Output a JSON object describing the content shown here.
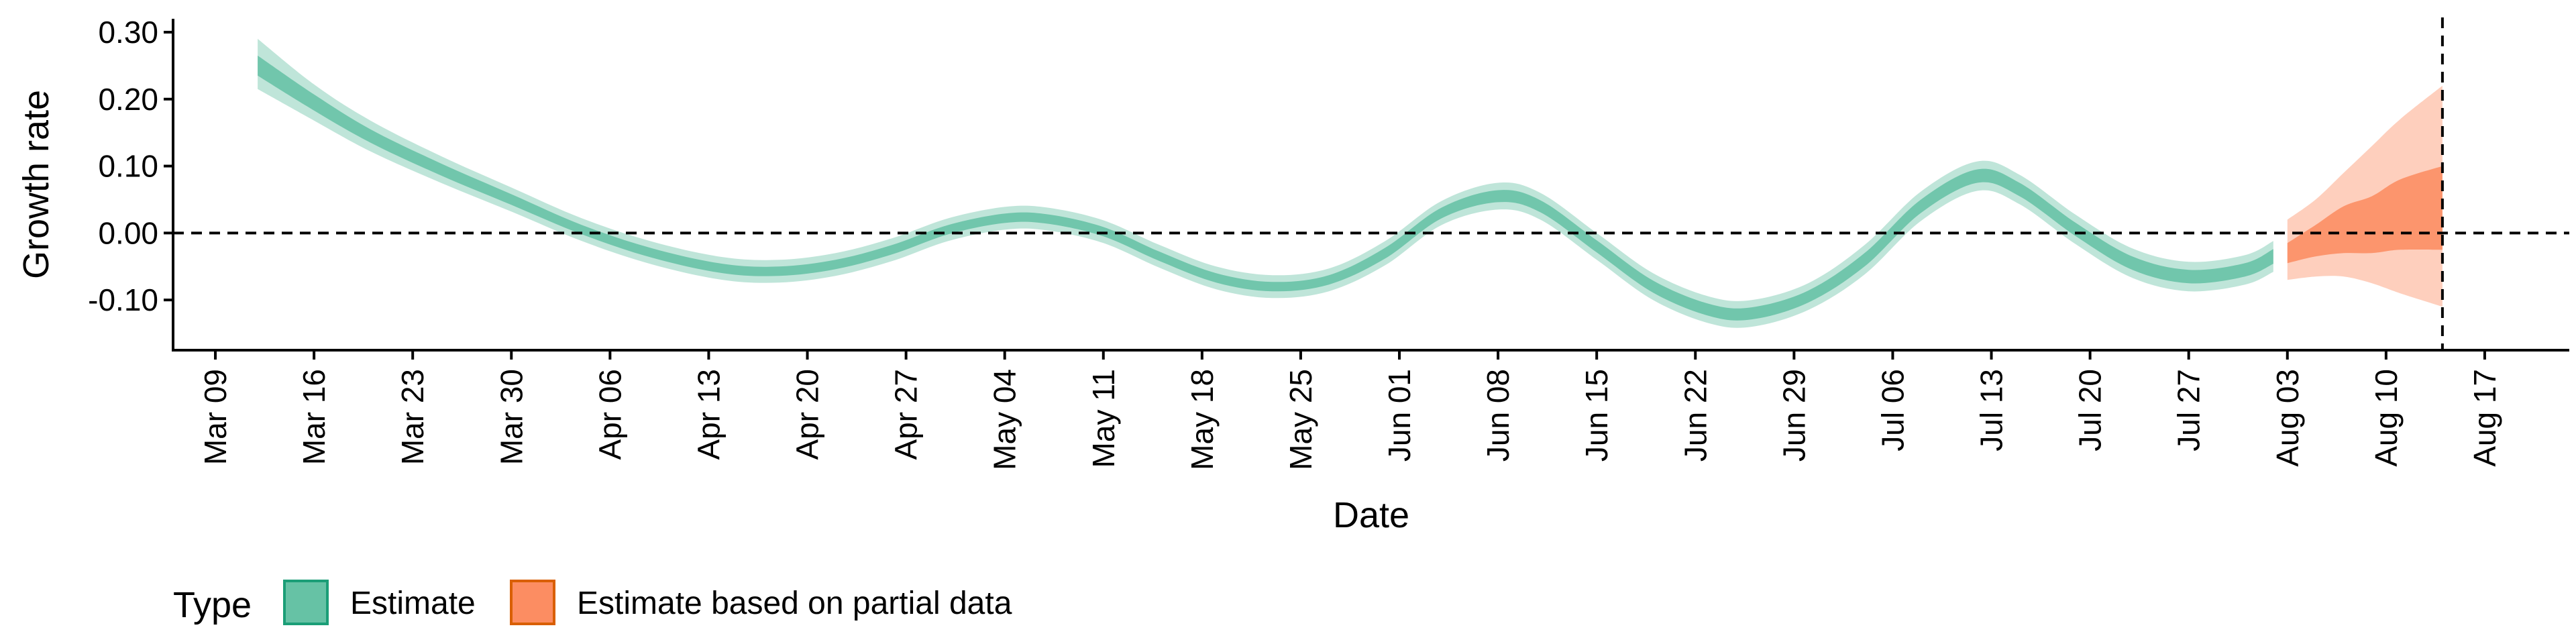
{
  "chart_data": {
    "type": "area",
    "xlabel": "Date",
    "ylabel": "Growth rate",
    "ylim": [
      -0.175,
      0.32
    ],
    "y_ticks": [
      0.3,
      0.2,
      0.1,
      0.0,
      -0.1
    ],
    "y_tick_labels": [
      "0.30",
      "0.20",
      "0.10",
      "0.00",
      "-0.10"
    ],
    "x_range": [
      "2020-03-06",
      "2020-08-23"
    ],
    "x_ticks": [
      "2020-03-09",
      "2020-03-16",
      "2020-03-23",
      "2020-03-30",
      "2020-04-06",
      "2020-04-13",
      "2020-04-20",
      "2020-04-27",
      "2020-05-04",
      "2020-05-11",
      "2020-05-18",
      "2020-05-25",
      "2020-06-01",
      "2020-06-08",
      "2020-06-15",
      "2020-06-22",
      "2020-06-29",
      "2020-07-06",
      "2020-07-13",
      "2020-07-20",
      "2020-07-27",
      "2020-08-03",
      "2020-08-10",
      "2020-08-17"
    ],
    "x_tick_labels": [
      "Mar 09",
      "Mar 16",
      "Mar 23",
      "Mar 30",
      "Apr 06",
      "Apr 13",
      "Apr 20",
      "Apr 27",
      "May 04",
      "May 11",
      "May 18",
      "May 25",
      "Jun 01",
      "Jun 08",
      "Jun 15",
      "Jun 22",
      "Jun 29",
      "Jul 06",
      "Jul 13",
      "Jul 20",
      "Jul 27",
      "Aug 03",
      "Aug 10",
      "Aug 17"
    ],
    "hline_y": 0.0,
    "vline_date": "2020-08-14",
    "series": [
      {
        "name": "Estimate",
        "color": "#66C2A5",
        "points": [
          {
            "date": "2020-03-12",
            "median": 0.25,
            "inner": [
              0.235,
              0.265
            ],
            "outer": [
              0.215,
              0.29
            ]
          },
          {
            "date": "2020-03-16",
            "median": 0.195,
            "inner": [
              0.183,
              0.207
            ],
            "outer": [
              0.168,
              0.222
            ]
          },
          {
            "date": "2020-03-20",
            "median": 0.145,
            "inner": [
              0.135,
              0.155
            ],
            "outer": [
              0.122,
              0.168
            ]
          },
          {
            "date": "2020-03-25",
            "median": 0.095,
            "inner": [
              0.086,
              0.104
            ],
            "outer": [
              0.075,
              0.115
            ]
          },
          {
            "date": "2020-03-30",
            "median": 0.05,
            "inner": [
              0.042,
              0.058
            ],
            "outer": [
              0.032,
              0.068
            ]
          },
          {
            "date": "2020-04-04",
            "median": 0.005,
            "inner": [
              -0.002,
              0.012
            ],
            "outer": [
              -0.012,
              0.022
            ]
          },
          {
            "date": "2020-04-09",
            "median": -0.03,
            "inner": [
              -0.037,
              -0.023
            ],
            "outer": [
              -0.047,
              -0.013
            ]
          },
          {
            "date": "2020-04-14",
            "median": -0.053,
            "inner": [
              -0.06,
              -0.046
            ],
            "outer": [
              -0.07,
              -0.036
            ]
          },
          {
            "date": "2020-04-18",
            "median": -0.057,
            "inner": [
              -0.064,
              -0.05
            ],
            "outer": [
              -0.074,
              -0.04
            ]
          },
          {
            "date": "2020-04-22",
            "median": -0.047,
            "inner": [
              -0.054,
              -0.04
            ],
            "outer": [
              -0.064,
              -0.03
            ]
          },
          {
            "date": "2020-04-26",
            "median": -0.025,
            "inner": [
              -0.032,
              -0.018
            ],
            "outer": [
              -0.042,
              -0.008
            ]
          },
          {
            "date": "2020-04-30",
            "median": 0.005,
            "inner": [
              -0.002,
              0.012
            ],
            "outer": [
              -0.012,
              0.022
            ]
          },
          {
            "date": "2020-05-04",
            "median": 0.022,
            "inner": [
              0.015,
              0.029
            ],
            "outer": [
              0.005,
              0.039
            ]
          },
          {
            "date": "2020-05-07",
            "median": 0.021,
            "inner": [
              0.014,
              0.028
            ],
            "outer": [
              0.004,
              0.038
            ]
          },
          {
            "date": "2020-05-11",
            "median": 0.002,
            "inner": [
              -0.005,
              0.009
            ],
            "outer": [
              -0.015,
              0.019
            ]
          },
          {
            "date": "2020-05-15",
            "median": -0.035,
            "inner": [
              -0.042,
              -0.028
            ],
            "outer": [
              -0.052,
              -0.018
            ]
          },
          {
            "date": "2020-05-19",
            "median": -0.067,
            "inner": [
              -0.074,
              -0.06
            ],
            "outer": [
              -0.084,
              -0.05
            ]
          },
          {
            "date": "2020-05-23",
            "median": -0.08,
            "inner": [
              -0.087,
              -0.073
            ],
            "outer": [
              -0.097,
              -0.063
            ]
          },
          {
            "date": "2020-05-27",
            "median": -0.07,
            "inner": [
              -0.077,
              -0.063
            ],
            "outer": [
              -0.087,
              -0.053
            ]
          },
          {
            "date": "2020-05-31",
            "median": -0.03,
            "inner": [
              -0.038,
              -0.022
            ],
            "outer": [
              -0.048,
              -0.012
            ]
          },
          {
            "date": "2020-06-04",
            "median": 0.03,
            "inner": [
              0.022,
              0.038
            ],
            "outer": [
              0.012,
              0.048
            ]
          },
          {
            "date": "2020-06-08",
            "median": 0.055,
            "inner": [
              0.046,
              0.064
            ],
            "outer": [
              0.035,
              0.075
            ]
          },
          {
            "date": "2020-06-11",
            "median": 0.04,
            "inner": [
              0.031,
              0.049
            ],
            "outer": [
              0.02,
              0.06
            ]
          },
          {
            "date": "2020-06-15",
            "median": -0.02,
            "inner": [
              -0.029,
              -0.011
            ],
            "outer": [
              -0.04,
              0.0
            ]
          },
          {
            "date": "2020-06-19",
            "median": -0.08,
            "inner": [
              -0.089,
              -0.071
            ],
            "outer": [
              -0.1,
              -0.06
            ]
          },
          {
            "date": "2020-06-23",
            "median": -0.115,
            "inner": [
              -0.124,
              -0.106
            ],
            "outer": [
              -0.135,
              -0.095
            ]
          },
          {
            "date": "2020-06-26",
            "median": -0.12,
            "inner": [
              -0.129,
              -0.111
            ],
            "outer": [
              -0.14,
              -0.1
            ]
          },
          {
            "date": "2020-06-30",
            "median": -0.095,
            "inner": [
              -0.104,
              -0.086
            ],
            "outer": [
              -0.115,
              -0.075
            ]
          },
          {
            "date": "2020-07-04",
            "median": -0.04,
            "inner": [
              -0.05,
              -0.03
            ],
            "outer": [
              -0.062,
              -0.018
            ]
          },
          {
            "date": "2020-07-08",
            "median": 0.04,
            "inner": [
              0.03,
              0.05
            ],
            "outer": [
              0.018,
              0.062
            ]
          },
          {
            "date": "2020-07-12",
            "median": 0.085,
            "inner": [
              0.075,
              0.095
            ],
            "outer": [
              0.063,
              0.107
            ]
          },
          {
            "date": "2020-07-15",
            "median": 0.065,
            "inner": [
              0.055,
              0.075
            ],
            "outer": [
              0.043,
              0.087
            ]
          },
          {
            "date": "2020-07-19",
            "median": 0.005,
            "inner": [
              -0.005,
              0.015
            ],
            "outer": [
              -0.017,
              0.027
            ]
          },
          {
            "date": "2020-07-23",
            "median": -0.045,
            "inner": [
              -0.055,
              -0.035
            ],
            "outer": [
              -0.067,
              -0.023
            ]
          },
          {
            "date": "2020-07-27",
            "median": -0.065,
            "inner": [
              -0.075,
              -0.055
            ],
            "outer": [
              -0.087,
              -0.043
            ]
          },
          {
            "date": "2020-07-31",
            "median": -0.055,
            "inner": [
              -0.065,
              -0.045
            ],
            "outer": [
              -0.077,
              -0.033
            ]
          },
          {
            "date": "2020-08-02",
            "median": -0.035,
            "inner": [
              -0.046,
              -0.024
            ],
            "outer": [
              -0.058,
              -0.012
            ]
          }
        ]
      },
      {
        "name": "Estimate based on partial data",
        "color": "#FC8D62",
        "points": [
          {
            "date": "2020-08-03",
            "median": -0.03,
            "inner": [
              -0.045,
              -0.015
            ],
            "outer": [
              -0.07,
              0.02
            ]
          },
          {
            "date": "2020-08-05",
            "median": -0.015,
            "inner": [
              -0.035,
              0.012
            ],
            "outer": [
              -0.065,
              0.05
            ]
          },
          {
            "date": "2020-08-07",
            "median": 0.0,
            "inner": [
              -0.03,
              0.04
            ],
            "outer": [
              -0.065,
              0.09
            ]
          },
          {
            "date": "2020-08-09",
            "median": 0.01,
            "inner": [
              -0.03,
              0.055
            ],
            "outer": [
              -0.075,
              0.13
            ]
          },
          {
            "date": "2020-08-11",
            "median": 0.025,
            "inner": [
              -0.025,
              0.08
            ],
            "outer": [
              -0.09,
              0.17
            ]
          },
          {
            "date": "2020-08-14",
            "median": 0.04,
            "inner": [
              -0.025,
              0.1
            ],
            "outer": [
              -0.11,
              0.22
            ]
          }
        ]
      }
    ],
    "legend": {
      "title": "Type",
      "position": "bottom-left",
      "entries": [
        "Estimate",
        "Estimate based on partial data"
      ]
    }
  }
}
